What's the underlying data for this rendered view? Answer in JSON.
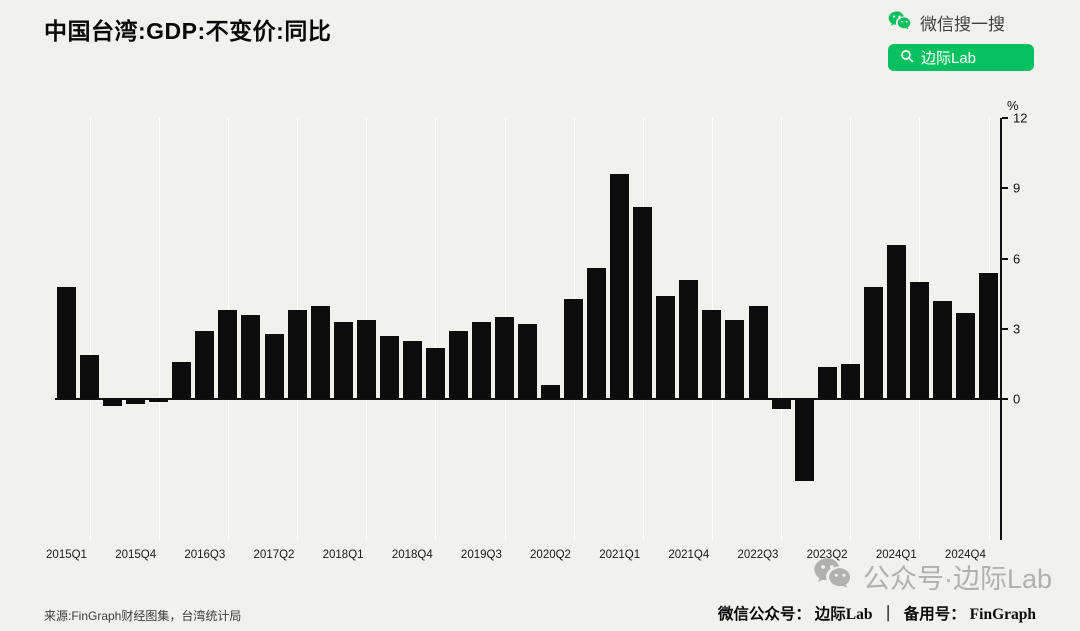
{
  "header": {
    "title": "中国台湾:GDP:不变价:同比"
  },
  "wechat_search": {
    "label": "微信搜一搜",
    "button": "边际Lab",
    "icons": [
      "wechat-logo-icon",
      "search-icon"
    ],
    "button_color": "#07C160"
  },
  "chart_data": {
    "type": "bar",
    "title": "中国台湾:GDP:不变价:同比",
    "unit": "%",
    "bar_color": "#0d0d0d",
    "background": "#f1f1ee",
    "ylim": [
      -6,
      12
    ],
    "yticks": [
      0,
      3,
      6,
      9,
      12
    ],
    "grid": "vertical-light",
    "legend": "none",
    "categories": [
      "2015Q1",
      "2015Q2",
      "2015Q3",
      "2015Q4",
      "2016Q1",
      "2016Q2",
      "2016Q3",
      "2016Q4",
      "2017Q1",
      "2017Q2",
      "2017Q3",
      "2017Q4",
      "2018Q1",
      "2018Q2",
      "2018Q3",
      "2018Q4",
      "2019Q1",
      "2019Q2",
      "2019Q3",
      "2019Q4",
      "2020Q1",
      "2020Q2",
      "2020Q3",
      "2020Q4",
      "2021Q1",
      "2021Q2",
      "2021Q3",
      "2021Q4",
      "2022Q1",
      "2022Q2",
      "2022Q3",
      "2022Q4",
      "2023Q1",
      "2023Q2",
      "2023Q3",
      "2023Q4",
      "2024Q1",
      "2024Q2",
      "2024Q3",
      "2024Q4",
      "2025Q1"
    ],
    "values": [
      4.8,
      1.9,
      -0.3,
      -0.2,
      -0.1,
      1.6,
      2.9,
      3.8,
      3.6,
      2.8,
      3.8,
      4.0,
      3.3,
      3.4,
      2.7,
      2.5,
      2.2,
      2.9,
      3.3,
      3.5,
      3.2,
      0.6,
      4.3,
      5.6,
      9.6,
      8.2,
      4.4,
      5.1,
      3.8,
      3.4,
      4.0,
      -0.4,
      -3.5,
      1.4,
      1.5,
      4.8,
      6.6,
      5.0,
      4.2,
      3.7,
      5.4
    ],
    "xtick_indices": [
      0,
      3,
      6,
      9,
      12,
      15,
      18,
      21,
      24,
      27,
      30,
      33,
      36,
      39
    ],
    "xtick_labels": [
      "2015Q1",
      "2015Q4",
      "2016Q3",
      "2017Q2",
      "2018Q1",
      "2018Q4",
      "2019Q3",
      "2020Q2",
      "2021Q1",
      "2021Q4",
      "2022Q3",
      "2023Q2",
      "2024Q1",
      "2024Q4"
    ]
  },
  "watermark": {
    "text": "公众号·边际Lab",
    "icon": "wechat-icon"
  },
  "footer": {
    "source": "来源:FinGraph财经图集，台湾统计局",
    "account_label": "微信公众号：",
    "account_name": "边际Lab",
    "separator": "｜",
    "backup_label": "备用号：",
    "backup_name": "FinGraph"
  }
}
